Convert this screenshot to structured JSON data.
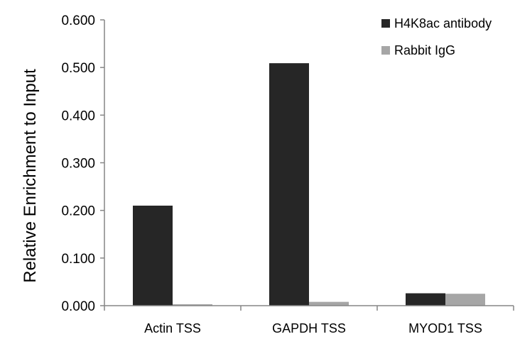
{
  "chart_data": {
    "type": "bar",
    "title": "",
    "xlabel": "",
    "ylabel": "Relative Enrichment to Input",
    "categories": [
      "Actin TSS",
      "GAPDH TSS",
      "MYOD1 TSS"
    ],
    "series": [
      {
        "name": "H4K8ac antibody",
        "color": "#262626",
        "values": [
          0.21,
          0.509,
          0.026
        ]
      },
      {
        "name": "Rabbit IgG",
        "color": "#a6a6a6",
        "values": [
          0.003,
          0.008,
          0.025
        ]
      }
    ],
    "ylim": [
      0,
      0.6
    ],
    "yticks": [
      "0.000",
      "0.100",
      "0.200",
      "0.300",
      "0.400",
      "0.500",
      "0.600"
    ],
    "grid": false,
    "legend_position": "top-right"
  }
}
